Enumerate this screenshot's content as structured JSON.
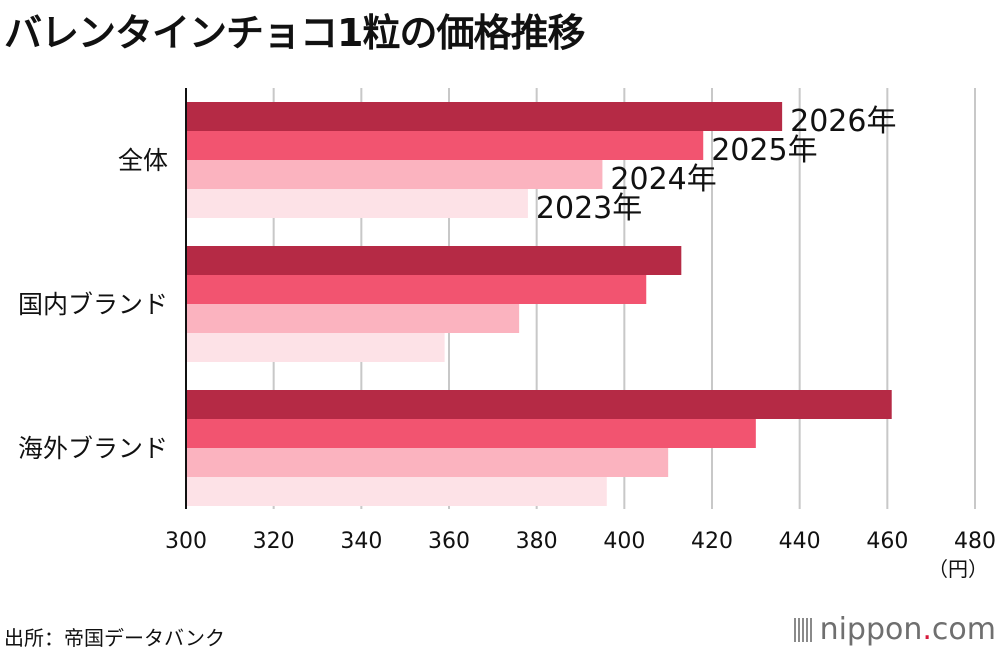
{
  "title": "バレンタインチョコ1粒の価格推移",
  "source": "出所：帝国データバンク",
  "logo": {
    "prefix": "nippon",
    "dot": ".",
    "suffix": "com",
    "icon": "nippon-bars-icon"
  },
  "chart_data": {
    "type": "bar",
    "orientation": "horizontal",
    "title": "バレンタインチョコ1粒の価格推移",
    "xlabel": "",
    "ylabel": "",
    "unit": "（円）",
    "xlim": [
      300,
      480
    ],
    "ticks": [
      300,
      320,
      340,
      360,
      380,
      400,
      420,
      440,
      460,
      480
    ],
    "grid": true,
    "categories": [
      "全体",
      "国内ブランド",
      "海外ブランド"
    ],
    "series": [
      {
        "name": "2026年",
        "color": "#b52a45",
        "values": [
          436,
          413,
          461
        ]
      },
      {
        "name": "2025年",
        "color": "#f25470",
        "values": [
          418,
          405,
          430
        ]
      },
      {
        "name": "2024年",
        "color": "#fbb3bf",
        "values": [
          395,
          376,
          410
        ]
      },
      {
        "name": "2023年",
        "color": "#fde2e7",
        "values": [
          378,
          359,
          396
        ]
      }
    ]
  }
}
